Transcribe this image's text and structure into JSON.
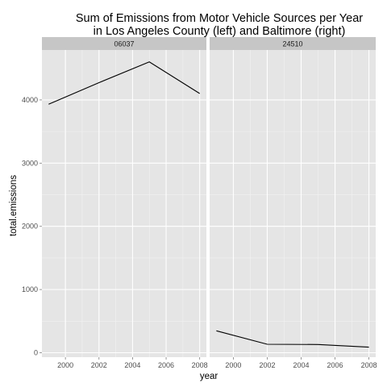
{
  "chart_data": {
    "type": "line",
    "title_line1": "Sum of Emissions from Motor Vehicle Sources per Year",
    "title_line2": "in Los Angeles County (left) and Baltimore (right)",
    "xlabel": "year",
    "ylabel": "total.emissions",
    "xlim": [
      1998.6,
      2008.4
    ],
    "ylim": [
      -70,
      4790
    ],
    "x_ticks": [
      2000,
      2002,
      2004,
      2006,
      2008
    ],
    "y_ticks": [
      0,
      1000,
      2000,
      3000,
      4000
    ],
    "grid": true,
    "colors": {
      "panel_bg": "#e5e5e5",
      "strip_bg": "#c6c6c6",
      "grid_major": "#ffffff",
      "grid_minor": "#f2f2f2",
      "line": "#000000"
    },
    "panels": [
      {
        "label": "06037",
        "x": [
          1999,
          2002,
          2005,
          2008
        ],
        "values": [
          3931,
          4274,
          4601,
          4101
        ]
      },
      {
        "label": "24510",
        "x": [
          1999,
          2002,
          2005,
          2008
        ],
        "values": [
          347,
          134,
          130,
          88
        ]
      }
    ]
  }
}
